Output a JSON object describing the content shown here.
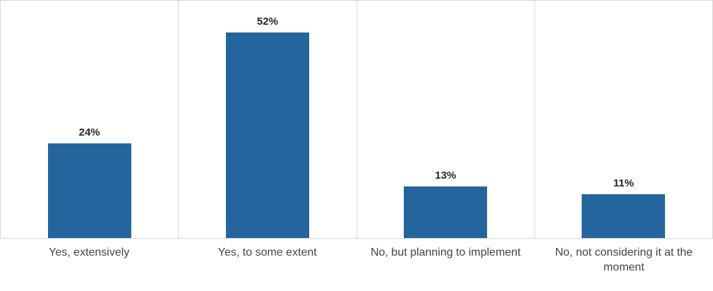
{
  "chart_data": {
    "type": "bar",
    "categories": [
      "Yes, extensively",
      "Yes, to some extent",
      "No, but planning to implement",
      "No, not considering it at the moment"
    ],
    "values": [
      24,
      52,
      13,
      11
    ],
    "value_labels": [
      "24%",
      "52%",
      "13%",
      "11%"
    ],
    "unit": "%",
    "ylim": [
      0,
      60
    ],
    "legend": "none",
    "gridlines": "vertical-panel-separators-and-outer-frame",
    "colors": {
      "bar": "#25659E",
      "grid": "#D9D9D9",
      "value_label": "#262626",
      "category_label": "#444444",
      "background": "#FFFFFF"
    }
  }
}
